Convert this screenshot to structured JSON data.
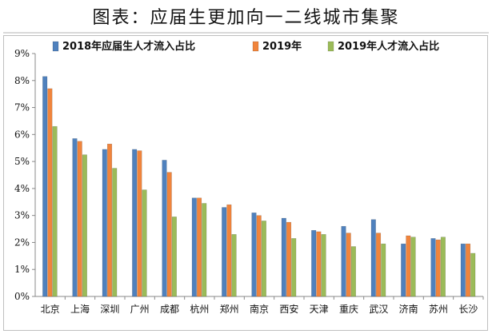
{
  "title": "图表：应届生更加向一二线城市集聚",
  "chart_data": {
    "type": "bar",
    "categories": [
      "北京",
      "上海",
      "深圳",
      "广州",
      "成都",
      "杭州",
      "郑州",
      "南京",
      "西安",
      "天津",
      "重庆",
      "武汉",
      "济南",
      "苏州",
      "长沙"
    ],
    "series": [
      {
        "name": "2018年应届生人才流入占比",
        "color": "#4f81bd",
        "values": [
          8.15,
          5.85,
          5.45,
          5.45,
          5.05,
          3.65,
          3.3,
          3.1,
          2.9,
          2.45,
          2.6,
          2.85,
          1.95,
          2.15,
          1.95
        ]
      },
      {
        "name": "2019年",
        "color": "#f0843c",
        "values": [
          7.7,
          5.75,
          5.65,
          5.4,
          4.6,
          3.65,
          3.4,
          3.0,
          2.75,
          2.4,
          2.35,
          2.35,
          2.25,
          2.1,
          1.95
        ]
      },
      {
        "name": "2019年人才流入占比",
        "color": "#9bbb59",
        "values": [
          6.3,
          5.25,
          4.75,
          3.95,
          2.95,
          3.45,
          2.3,
          2.8,
          2.15,
          2.3,
          1.85,
          1.95,
          2.2,
          2.2,
          1.6
        ]
      }
    ],
    "y_ticks": [
      "0%",
      "1%",
      "2%",
      "3%",
      "4%",
      "5%",
      "6%",
      "7%",
      "8%",
      "9%"
    ],
    "ylim": [
      0,
      9
    ],
    "grid": false,
    "legend_position": "top"
  }
}
